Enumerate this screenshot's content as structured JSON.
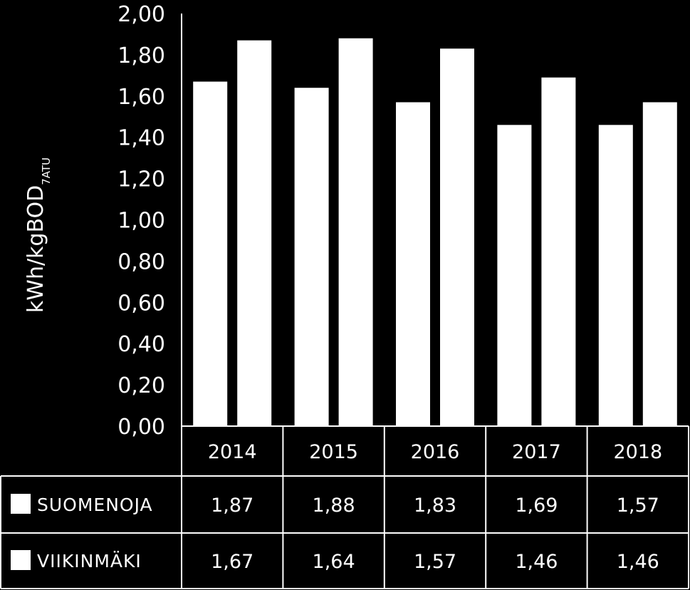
{
  "chart_data": {
    "type": "bar",
    "title": "",
    "xlabel": "",
    "ylabel": "kWh/kgBOD",
    "ylabel_subscript": "7ATU",
    "categories": [
      "2014",
      "2015",
      "2016",
      "2017",
      "2018"
    ],
    "series": [
      {
        "name": "SUOMENOJA",
        "values": [
          1.87,
          1.88,
          1.83,
          1.69,
          1.57
        ],
        "labels": [
          "1,87",
          "1,88",
          "1,83",
          "1,69",
          "1,57"
        ]
      },
      {
        "name": "VIIKINMÄKI",
        "values": [
          1.67,
          1.64,
          1.57,
          1.46,
          1.46
        ],
        "labels": [
          "1,67",
          "1,64",
          "1,57",
          "1,46",
          "1,46"
        ]
      }
    ],
    "bar_order_within_group": [
      "VIIKINMÄKI",
      "SUOMENOJA"
    ],
    "ylim": [
      0,
      2.0
    ],
    "yticks": [
      "0,00",
      "0,20",
      "0,40",
      "0,60",
      "0,80",
      "1,00",
      "1,20",
      "1,40",
      "1,60",
      "1,80",
      "2,00"
    ],
    "grid": false,
    "legend": "data table below chart",
    "colors": {
      "background": "#000000",
      "bars": "#ffffff",
      "text": "#ffffff",
      "lines": "#ffffff"
    }
  }
}
